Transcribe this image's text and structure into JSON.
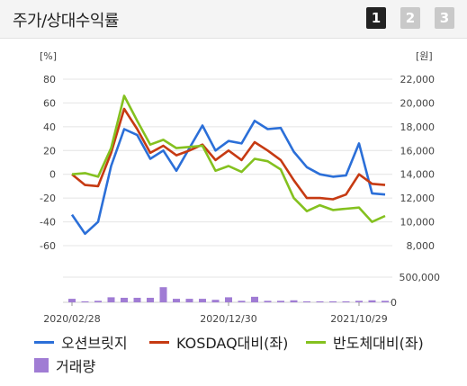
{
  "header": {
    "title": "주가/상대수익률",
    "tabs": [
      "1",
      "2",
      "3"
    ],
    "active_tab": 0
  },
  "colors": {
    "stock": "#2b6fd8",
    "kosdaq": "#c63a12",
    "semis": "#84c11f",
    "volume": "#a07cd4",
    "grid": "#e4e4e4"
  },
  "chart_data": {
    "type": "line",
    "left_axis": {
      "unit": "[%]",
      "ticks": [
        "80",
        "60",
        "40",
        "20",
        "0",
        "-20",
        "-40",
        "-60"
      ],
      "ylim": [
        -60,
        80
      ]
    },
    "right_axis": {
      "unit": "[원]",
      "ticks": [
        "22,000",
        "20,000",
        "18,000",
        "16,000",
        "14,000",
        "12,000",
        "10,000",
        "8,000"
      ],
      "ylim": [
        8000,
        22000
      ]
    },
    "volume_axis": {
      "ticks": [
        "500,000",
        "0"
      ],
      "ylim": [
        0,
        500000
      ]
    },
    "x_labels": [
      "2020/02/28",
      "2020/12/30",
      "2021/10/29"
    ],
    "series": [
      {
        "name": "오션브릿지",
        "axis": "right",
        "values": [
          10600,
          9000,
          10000,
          14700,
          17800,
          17300,
          15300,
          16000,
          14300,
          16200,
          18100,
          16000,
          16800,
          16600,
          18500,
          17800,
          17900,
          15900,
          14600,
          14000,
          13800,
          13900,
          16600,
          12400,
          12300
        ]
      },
      {
        "name": "KOSDAQ대비(좌)",
        "axis": "left",
        "values": [
          0,
          -9,
          -10,
          18,
          55,
          38,
          18,
          24,
          16,
          20,
          25,
          12,
          20,
          12,
          27,
          20,
          12,
          -5,
          -20,
          -20,
          -21,
          -17,
          0,
          -8,
          -9
        ]
      },
      {
        "name": "반도체대비(좌)",
        "axis": "left",
        "values": [
          0,
          1,
          -2,
          22,
          66,
          45,
          25,
          29,
          22,
          23,
          24,
          3,
          7,
          2,
          13,
          11,
          4,
          -20,
          -31,
          -26,
          -30,
          -29,
          -28,
          -40,
          -35
        ]
      }
    ],
    "volume": {
      "name": "거래량",
      "values": [
        70000,
        20000,
        30000,
        100000,
        90000,
        90000,
        90000,
        300000,
        70000,
        70000,
        70000,
        50000,
        100000,
        30000,
        110000,
        30000,
        30000,
        40000,
        20000,
        20000,
        20000,
        20000,
        30000,
        40000,
        30000
      ]
    }
  }
}
